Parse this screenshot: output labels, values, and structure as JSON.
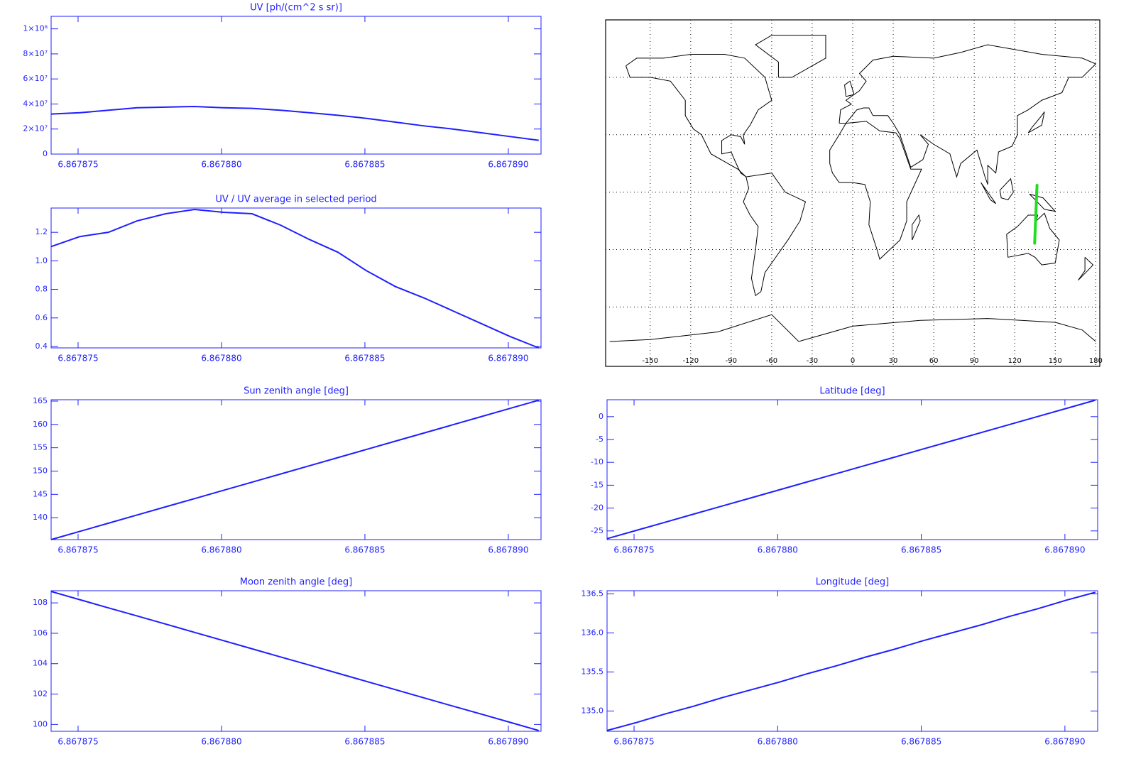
{
  "chart_data": [
    {
      "type": "line",
      "title": "UV [ph/(cm^2 s sr)]",
      "color": "#1f1fff",
      "x": [
        6.86787406,
        6.86787506,
        6.86787606,
        6.86787706,
        6.86787806,
        6.86787906,
        6.86788006,
        6.86788106,
        6.86788206,
        6.86788306,
        6.86788406,
        6.86788506,
        6.86788606,
        6.86788706,
        6.86788806,
        6.86788906,
        6.86789006,
        6.86789106
      ],
      "values": [
        32000000,
        33000000,
        35000000,
        37000000,
        37500000,
        38000000,
        37000000,
        36500000,
        35000000,
        33000000,
        31000000,
        28500000,
        25500000,
        22500000,
        20000000,
        17000000,
        14000000,
        11000000
      ],
      "xlim": [
        6.86787406,
        6.86789114
      ],
      "ylim": [
        0,
        110000000
      ],
      "xticks": [
        6.867875,
        {
          "value": 6.86788,
          "label": "6.867880"
        },
        6.867885,
        {
          "value": 6.86789,
          "label": "6.867890"
        }
      ],
      "yticks": [
        0,
        {
          "value": 20000000,
          "label": "2×10⁷"
        },
        {
          "value": 40000000,
          "label": "4×10⁷"
        },
        {
          "value": 60000000,
          "label": "6×10⁷"
        },
        {
          "value": 80000000,
          "label": "8×10⁷"
        },
        {
          "value": 100000000,
          "label": "1×10⁸"
        }
      ]
    },
    {
      "type": "line",
      "title": "UV / UV average in selected period",
      "color": "#1f1fff",
      "x": [
        6.86787406,
        6.86787506,
        6.86787606,
        6.86787706,
        6.86787806,
        6.86787906,
        6.86788006,
        6.86788106,
        6.86788206,
        6.86788306,
        6.86788406,
        6.86788506,
        6.86788606,
        6.86788706,
        6.86788806,
        6.86788906,
        6.86789006,
        6.86789106
      ],
      "values": [
        1.1,
        1.17,
        1.2,
        1.28,
        1.33,
        1.36,
        1.34,
        1.33,
        1.25,
        1.15,
        1.06,
        0.93,
        0.82,
        0.74,
        0.65,
        0.56,
        0.47,
        0.39
      ],
      "xlim": [
        6.86787406,
        6.86789114
      ],
      "ylim": [
        0.39,
        1.37
      ],
      "xticks": [
        6.867875,
        {
          "value": 6.86788,
          "label": "6.867880"
        },
        6.867885,
        {
          "value": 6.86789,
          "label": "6.867890"
        }
      ],
      "yticks": [
        0.4,
        0.6,
        0.8,
        {
          "value": 1,
          "label": "1.0"
        },
        1.2
      ]
    },
    {
      "type": "line",
      "title": "Sun zenith angle [deg]",
      "color": "#1f1fff",
      "x": [
        6.86787406,
        6.86787506,
        6.86787606,
        6.86787706,
        6.86787806,
        6.86787906,
        6.86788006,
        6.86788106,
        6.86788206,
        6.86788306,
        6.86788406,
        6.86788506,
        6.86788606,
        6.86788706,
        6.86788806,
        6.86788906,
        6.86789006,
        6.86789106
      ],
      "values": [
        135.3,
        137.06,
        138.82,
        140.58,
        142.34,
        144.09,
        145.85,
        147.61,
        149.37,
        151.13,
        152.89,
        154.65,
        156.41,
        158.16,
        159.92,
        161.68,
        163.44,
        165.2
      ],
      "xlim": [
        6.86787406,
        6.86789114
      ],
      "ylim": [
        135.3,
        165.3
      ],
      "xticks": [
        6.867875,
        {
          "value": 6.86788,
          "label": "6.867880"
        },
        6.867885,
        {
          "value": 6.86789,
          "label": "6.867890"
        }
      ],
      "yticks": [
        140,
        145,
        150,
        155,
        160,
        165
      ]
    },
    {
      "type": "line",
      "title": "Moon zenith angle [deg]",
      "color": "#1f1fff",
      "x": [
        6.86787406,
        6.86787506,
        6.86787606,
        6.86787706,
        6.86787806,
        6.86787906,
        6.86788006,
        6.86788106,
        6.86788206,
        6.86788306,
        6.86788406,
        6.86788506,
        6.86788606,
        6.86788706,
        6.86788806,
        6.86788906,
        6.86789006,
        6.86789106
      ],
      "values": [
        108.75,
        108.21,
        107.67,
        107.14,
        106.6,
        106.06,
        105.52,
        104.98,
        104.44,
        103.91,
        103.37,
        102.83,
        102.29,
        101.75,
        101.21,
        100.68,
        100.14,
        99.6
      ],
      "xlim": [
        6.86787406,
        6.86789114
      ],
      "ylim": [
        99.55,
        108.8
      ],
      "xticks": [
        6.867875,
        {
          "value": 6.86788,
          "label": "6.867880"
        },
        6.867885,
        {
          "value": 6.86789,
          "label": "6.867890"
        }
      ],
      "yticks": [
        100,
        102,
        104,
        106,
        108
      ]
    },
    {
      "type": "map",
      "color": "#22dd22",
      "x": [
        134.75,
        134.85,
        134.96,
        135.06,
        135.17,
        135.27,
        135.37,
        135.48,
        135.58,
        135.69,
        135.79,
        135.9,
        136.0,
        136.1,
        136.21,
        136.31,
        136.42,
        136.52
      ],
      "values": [
        -26.7,
        -24.92,
        -23.14,
        -21.35,
        -19.57,
        -17.79,
        -16.01,
        -14.22,
        -12.44,
        -10.66,
        -8.88,
        -7.09,
        -5.31,
        -3.53,
        -1.75,
        0.04,
        1.82,
        3.6
      ],
      "xlim": [
        -183,
        183
      ],
      "ylim": [
        -91,
        90
      ],
      "xticks": [
        -150,
        -120,
        -90,
        -60,
        -30,
        0,
        30,
        60,
        90,
        120,
        150,
        180
      ],
      "ygrid": [
        -60,
        -30,
        0,
        30,
        60
      ],
      "grid": true
    },
    {
      "type": "line",
      "title": "Latitude [deg]",
      "color": "#1f1fff",
      "x": [
        6.86787406,
        6.86787506,
        6.86787606,
        6.86787706,
        6.86787806,
        6.86787906,
        6.86788006,
        6.86788106,
        6.86788206,
        6.86788306,
        6.86788406,
        6.86788506,
        6.86788606,
        6.86788706,
        6.86788806,
        6.86788906,
        6.86789006,
        6.86789106
      ],
      "values": [
        -26.7,
        -24.92,
        -23.14,
        -21.35,
        -19.57,
        -17.79,
        -16.01,
        -14.22,
        -12.44,
        -10.66,
        -8.88,
        -7.09,
        -5.31,
        -3.53,
        -1.75,
        0.04,
        1.82,
        3.6
      ],
      "xlim": [
        6.86787406,
        6.86789114
      ],
      "ylim": [
        -26.9,
        3.7
      ],
      "xticks": [
        6.867875,
        {
          "value": 6.86788,
          "label": "6.867880"
        },
        6.867885,
        {
          "value": 6.86789,
          "label": "6.867890"
        }
      ],
      "yticks": [
        -25,
        -20,
        -15,
        -10,
        -5,
        0
      ]
    },
    {
      "type": "line",
      "title": "Longitude [deg]",
      "color": "#1f1fff",
      "x": [
        6.86787406,
        6.86787506,
        6.86787606,
        6.86787706,
        6.86787806,
        6.86787906,
        6.86788006,
        6.86788106,
        6.86788206,
        6.86788306,
        6.86788406,
        6.86788506,
        6.86788606,
        6.86788706,
        6.86788806,
        6.86788906,
        6.86789006,
        6.86789106
      ],
      "values": [
        134.75,
        134.85,
        134.96,
        135.06,
        135.17,
        135.27,
        135.37,
        135.48,
        135.58,
        135.69,
        135.79,
        135.9,
        136.0,
        136.1,
        136.21,
        136.31,
        136.42,
        136.52
      ],
      "xlim": [
        6.86787406,
        6.86789114
      ],
      "ylim": [
        134.74,
        136.54
      ],
      "xticks": [
        6.867875,
        {
          "value": 6.86788,
          "label": "6.867880"
        },
        6.867885,
        {
          "value": 6.86789,
          "label": "6.867890"
        }
      ],
      "yticks": [
        {
          "value": 135,
          "label": "135.0"
        },
        135.5,
        {
          "value": 136,
          "label": "136.0"
        },
        136.5
      ]
    }
  ]
}
